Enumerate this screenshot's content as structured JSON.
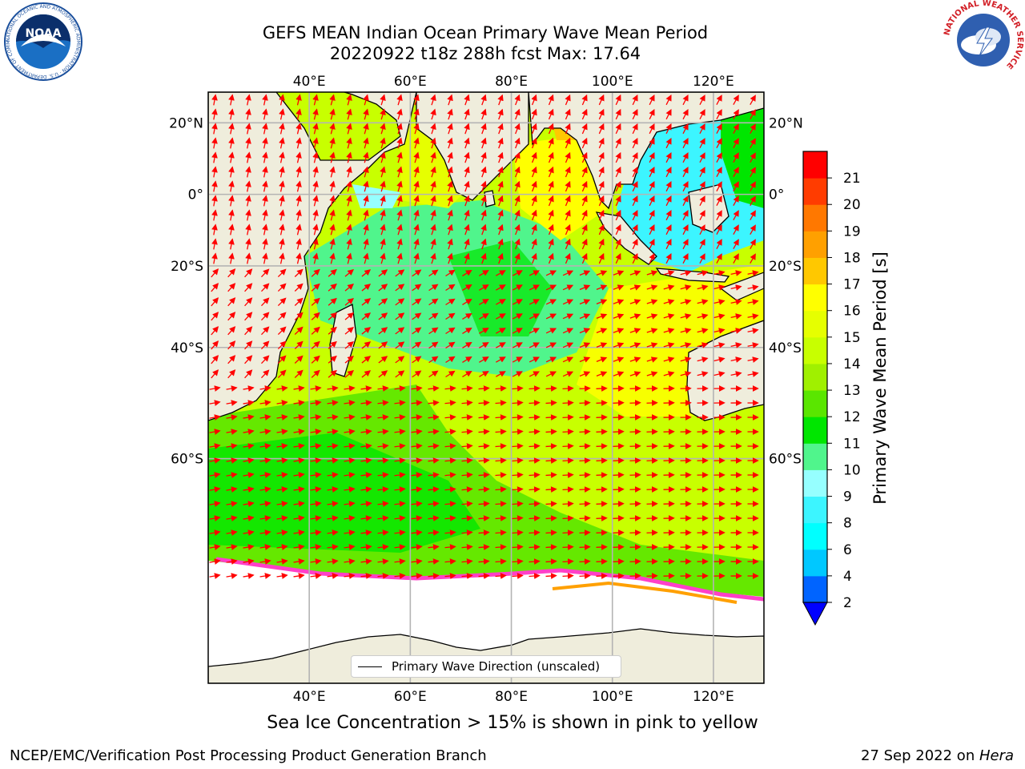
{
  "title_line1": "GEFS MEAN Indian Ocean Primary Wave Mean Period",
  "title_line2": "20220922 t18z 288h fcst   Max: 17.64",
  "map": {
    "lon_ticks": [
      "40°E",
      "60°E",
      "80°E",
      "100°E",
      "120°E"
    ],
    "lat_ticks": [
      "20°N",
      "0°",
      "20°S",
      "40°S",
      "60°S"
    ],
    "lon_values": [
      40,
      60,
      80,
      100,
      120
    ],
    "lat_values": [
      20,
      0,
      -20,
      -40,
      -60
    ],
    "extent": {
      "lon_min": 20,
      "lon_max": 130,
      "lat_min": -80,
      "lat_max": 28
    },
    "land_color": "#efeddc",
    "ice_color": "#ffffff",
    "arrow_color": "#ff0000",
    "legend_label": "Primary Wave Direction (unscaled)"
  },
  "colorbar": {
    "label": "Primary Wave Mean Period [s]",
    "ticks": [
      "2",
      "4",
      "6",
      "8",
      "9",
      "10",
      "11",
      "12",
      "13",
      "14",
      "15",
      "16",
      "17",
      "18",
      "19",
      "20",
      "21"
    ],
    "colors": [
      "#0064ff",
      "#00c8ff",
      "#00ffff",
      "#3cf5ff",
      "#96ffff",
      "#50f58c",
      "#00e600",
      "#5ae600",
      "#a0f000",
      "#c8ff00",
      "#e6ff00",
      "#ffff00",
      "#ffc800",
      "#ffa000",
      "#ff7800",
      "#ff3c00",
      "#ff0000"
    ],
    "extend_color": "#0000ff"
  },
  "note": "Sea Ice Concentration > 15% is shown in pink to yellow",
  "footer_left": "NCEP/EMC/Verification Post Processing Product Generation Branch",
  "footer_right_date": "27 Sep 2022 on ",
  "footer_right_machine": "Hera",
  "logos": {
    "noaa_text": "NOAA",
    "noaa_ring": "NATIONAL OCEANIC AND ATMOSPHERIC ADMINISTRATION · U.S. DEPARTMENT OF COMMERCE",
    "nws_ring": "NATIONAL WEATHER SERVICE"
  }
}
